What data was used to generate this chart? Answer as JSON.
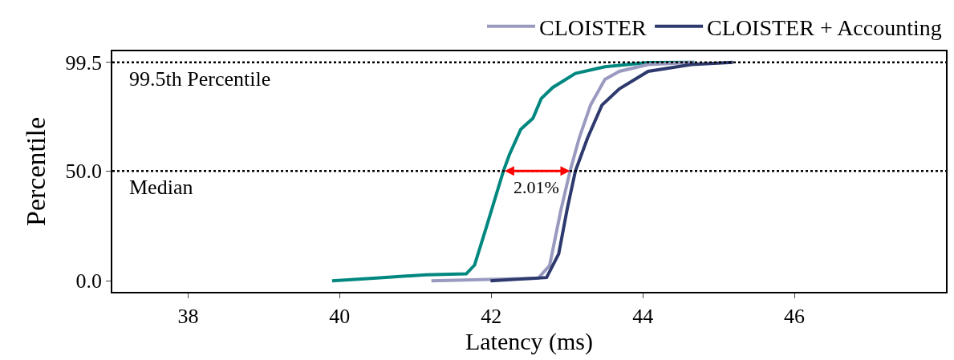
{
  "chart_data": {
    "type": "line",
    "xlabel": "Latency (ms)",
    "ylabel": "Percentile",
    "xlim": [
      37,
      48
    ],
    "xticks": [
      38,
      40,
      42,
      44,
      46
    ],
    "ylim": [
      -5,
      104.5
    ],
    "yticks": [
      {
        "value": 0,
        "label": "0.0"
      },
      {
        "value": 50,
        "label": "50.0"
      },
      {
        "value": 99.5,
        "label": "99.5"
      }
    ],
    "series": [
      {
        "name": null,
        "color": "#00877f",
        "x": [
          39.9,
          40.45,
          41.14,
          41.67,
          41.78,
          41.94,
          42.16,
          42.24,
          42.39,
          42.55,
          42.66,
          42.81,
          43.11,
          43.5,
          44.07,
          44.68
        ],
        "values": [
          0,
          1.2,
          2.8,
          3.2,
          7.2,
          25,
          50,
          57.5,
          69,
          74,
          83,
          88,
          94.4,
          97.5,
          99.4,
          99.5
        ]
      },
      {
        "name": "CLOISTER",
        "color": "#9a9ac0",
        "x": [
          41.21,
          42.62,
          42.77,
          42.92,
          43.04,
          43.16,
          43.31,
          43.5,
          43.69,
          44.07,
          44.67
        ],
        "values": [
          0,
          1.2,
          7,
          32.4,
          50,
          65,
          80,
          91.7,
          95.4,
          98.5,
          99.5
        ]
      },
      {
        "name": "CLOISTER + Accounting",
        "color": "#2e3a6e",
        "x": [
          41.99,
          42.73,
          42.89,
          43.0,
          43.11,
          43.27,
          43.46,
          43.69,
          44.07,
          44.64,
          45.19
        ],
        "values": [
          0,
          1.5,
          12.3,
          32.4,
          50,
          65,
          80,
          87.4,
          95.4,
          98.5,
          99.5
        ]
      }
    ],
    "ref_lines": [
      {
        "axis": "y",
        "value": 99.5,
        "label": "99.5th Percentile",
        "color": "#000000",
        "line_style": "dotted"
      },
      {
        "axis": "y",
        "value": 50,
        "label": "Median",
        "color": "#000000",
        "line_style": "dotted"
      }
    ],
    "annotations": [
      {
        "text": "2.01%",
        "x": 42.6,
        "y": 50
      }
    ],
    "legend": "top",
    "marker": "none",
    "line_style": "solid"
  }
}
